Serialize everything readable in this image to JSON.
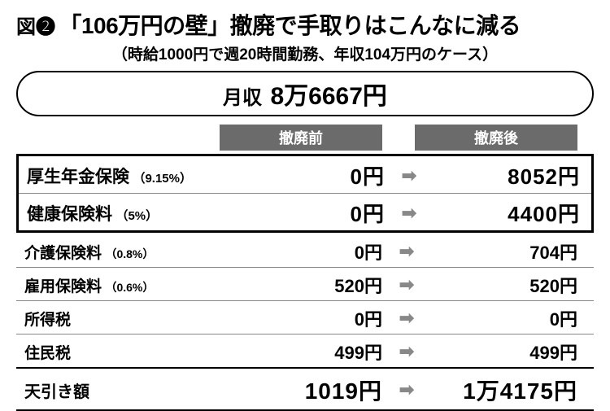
{
  "figure_label": "図❷",
  "title": "「106万円の壁」撤廃で手取りはこんなに減る",
  "subtitle": "（時給1000円で週20時間勤務、年収104万円のケース）",
  "income": {
    "label": "月収",
    "value": "8万6667円"
  },
  "columns": {
    "before": "撤廃前",
    "after": "撤廃後"
  },
  "highlighted_rows": [
    {
      "label": "厚生年金保険",
      "pct": "（9.15%）",
      "before": "0円",
      "after": "8052円"
    },
    {
      "label": "健康保険料",
      "pct": "（5%）",
      "before": "0円",
      "after": "4400円"
    }
  ],
  "rows": [
    {
      "label": "介護保険料",
      "pct": "（0.8%）",
      "before": "0円",
      "after": "704円"
    },
    {
      "label": "雇用保険料",
      "pct": "（0.6%）",
      "before": "520円",
      "after": "520円"
    },
    {
      "label": "所得税",
      "pct": "",
      "before": "0円",
      "after": "0円"
    },
    {
      "label": "住民税",
      "pct": "",
      "before": "499円",
      "after": "499円"
    }
  ],
  "subtotal": {
    "label": "天引き額",
    "before": "1019円",
    "after": "1万4175円"
  },
  "arrow_glyph": "➡"
}
